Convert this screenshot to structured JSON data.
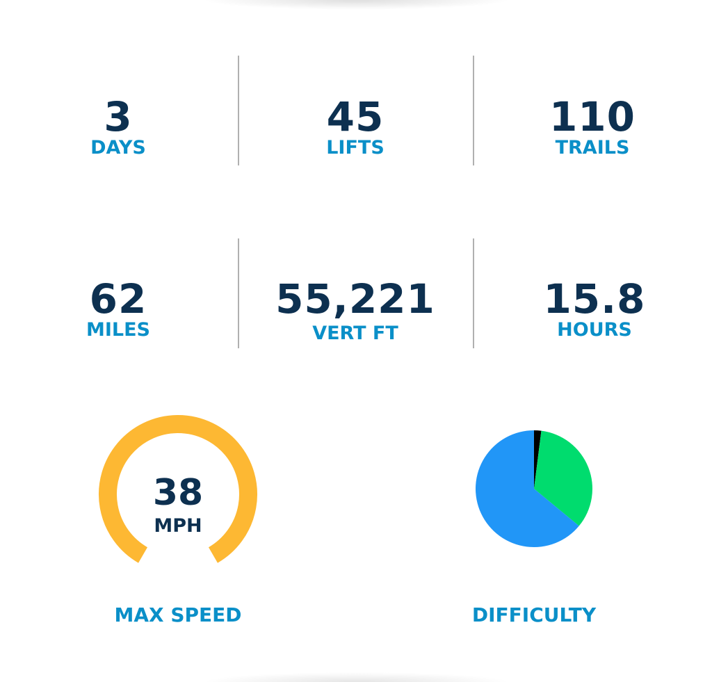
{
  "stats": [
    {
      "value": "3",
      "label": "DAYS"
    },
    {
      "value": "45",
      "label": "LIFTS"
    },
    {
      "value": "110",
      "label": "TRAILS"
    },
    {
      "value": "62",
      "label": "MILES"
    },
    {
      "value": "55,221",
      "label": "VERT FT"
    },
    {
      "value": "15.8",
      "label": "HOURS"
    }
  ],
  "max_speed": {
    "value": "38",
    "unit": "MPH",
    "caption": "MAX SPEED",
    "gauge_color": "#FDB833"
  },
  "difficulty": {
    "caption": "DIFFICULTY"
  },
  "colors": {
    "value": "#0d3050",
    "label": "#0a8fc8"
  },
  "chart_data": {
    "type": "pie",
    "values": [
      2,
      34,
      64
    ],
    "colors": [
      "#000000",
      "#00DC6E",
      "#2196F7"
    ],
    "start": "top",
    "direction": "clockwise"
  }
}
